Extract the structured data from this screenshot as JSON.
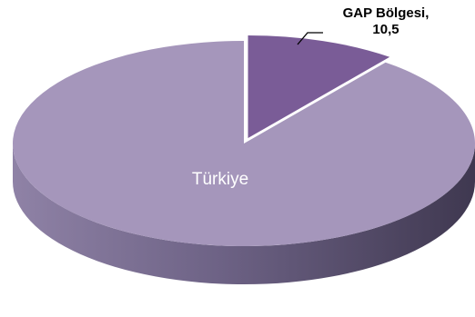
{
  "chart_data": {
    "type": "pie",
    "title": "",
    "style": "3d",
    "slices": [
      {
        "label": "GAP Bölgesi",
        "value": 10.5,
        "color": "#7a5c97",
        "side_color": "#5a4473",
        "exploded": true
      },
      {
        "label": "Türkiye",
        "value": 89.5,
        "color": "#a596bb",
        "side_color": "#6f6484",
        "exploded": false
      }
    ],
    "labels": {
      "gap_line1": "GAP Bölgesi,",
      "gap_line2": "10,5",
      "turkiye": "Türkiye"
    }
  }
}
